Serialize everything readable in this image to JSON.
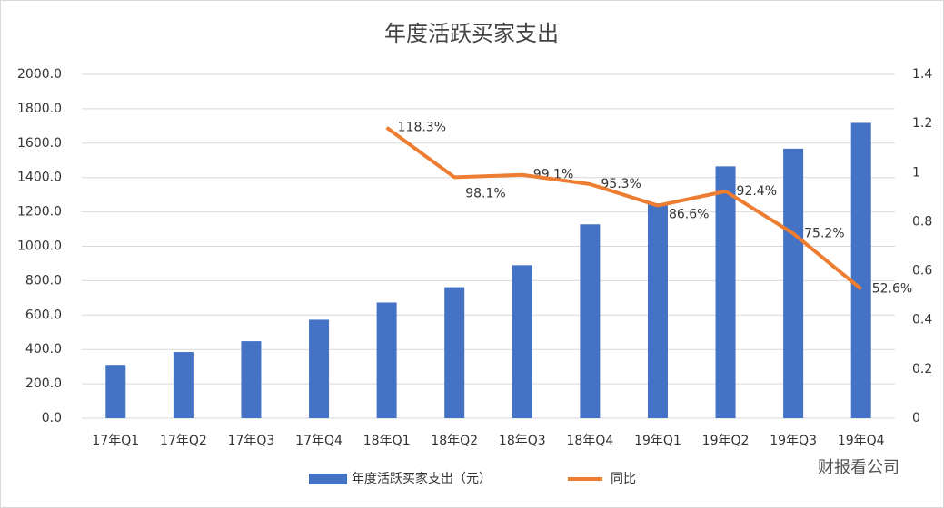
{
  "chart_data": {
    "type": "bar",
    "title": "年度活跃买家支出",
    "categories": [
      "17年Q1",
      "17年Q2",
      "17年Q3",
      "17年Q4",
      "18年Q1",
      "18年Q2",
      "18年Q3",
      "18年Q4",
      "19年Q1",
      "19年Q2",
      "19年Q3",
      "19年Q4"
    ],
    "series": [
      {
        "name": "年度活跃买家支出（元）",
        "color": "#4472c4",
        "values": [
          310,
          385,
          448,
          573,
          673,
          762,
          890,
          1128,
          1250,
          1465,
          1568,
          1718
        ]
      },
      {
        "name": "同比",
        "color": "#ed7d31",
        "type": "line",
        "axis": "y2",
        "values": [
          null,
          null,
          null,
          null,
          1.183,
          0.981,
          0.991,
          0.953,
          0.866,
          0.924,
          0.752,
          0.526
        ],
        "value_labels": [
          null,
          null,
          null,
          null,
          "118.3%",
          "98.1%",
          "99.1%",
          "95.3%",
          "86.6%",
          "92.4%",
          "75.2%",
          "52.6%"
        ]
      }
    ],
    "ylim": [
      0,
      2000
    ],
    "yticks": [
      {
        "value": 0,
        "label": "0.0"
      },
      {
        "value": 200,
        "label": "200.0"
      },
      {
        "value": 400,
        "label": "400.0"
      },
      {
        "value": 600,
        "label": "600.0"
      },
      {
        "value": 800,
        "label": "800.0"
      },
      {
        "value": 1000,
        "label": "1000.0"
      },
      {
        "value": 1200,
        "label": "1200.0"
      },
      {
        "value": 1400,
        "label": "1400.0"
      },
      {
        "value": 1600,
        "label": "1600.0"
      },
      {
        "value": 1800,
        "label": "1800.0"
      },
      {
        "value": 2000,
        "label": "2000.0"
      }
    ],
    "y2lim": [
      0,
      1.4
    ],
    "y2ticks": [
      0,
      0.2,
      0.4,
      0.6,
      0.8,
      1,
      1.2,
      1.4
    ],
    "grid": true,
    "legend": "bottom",
    "watermark": "财报看公司"
  }
}
